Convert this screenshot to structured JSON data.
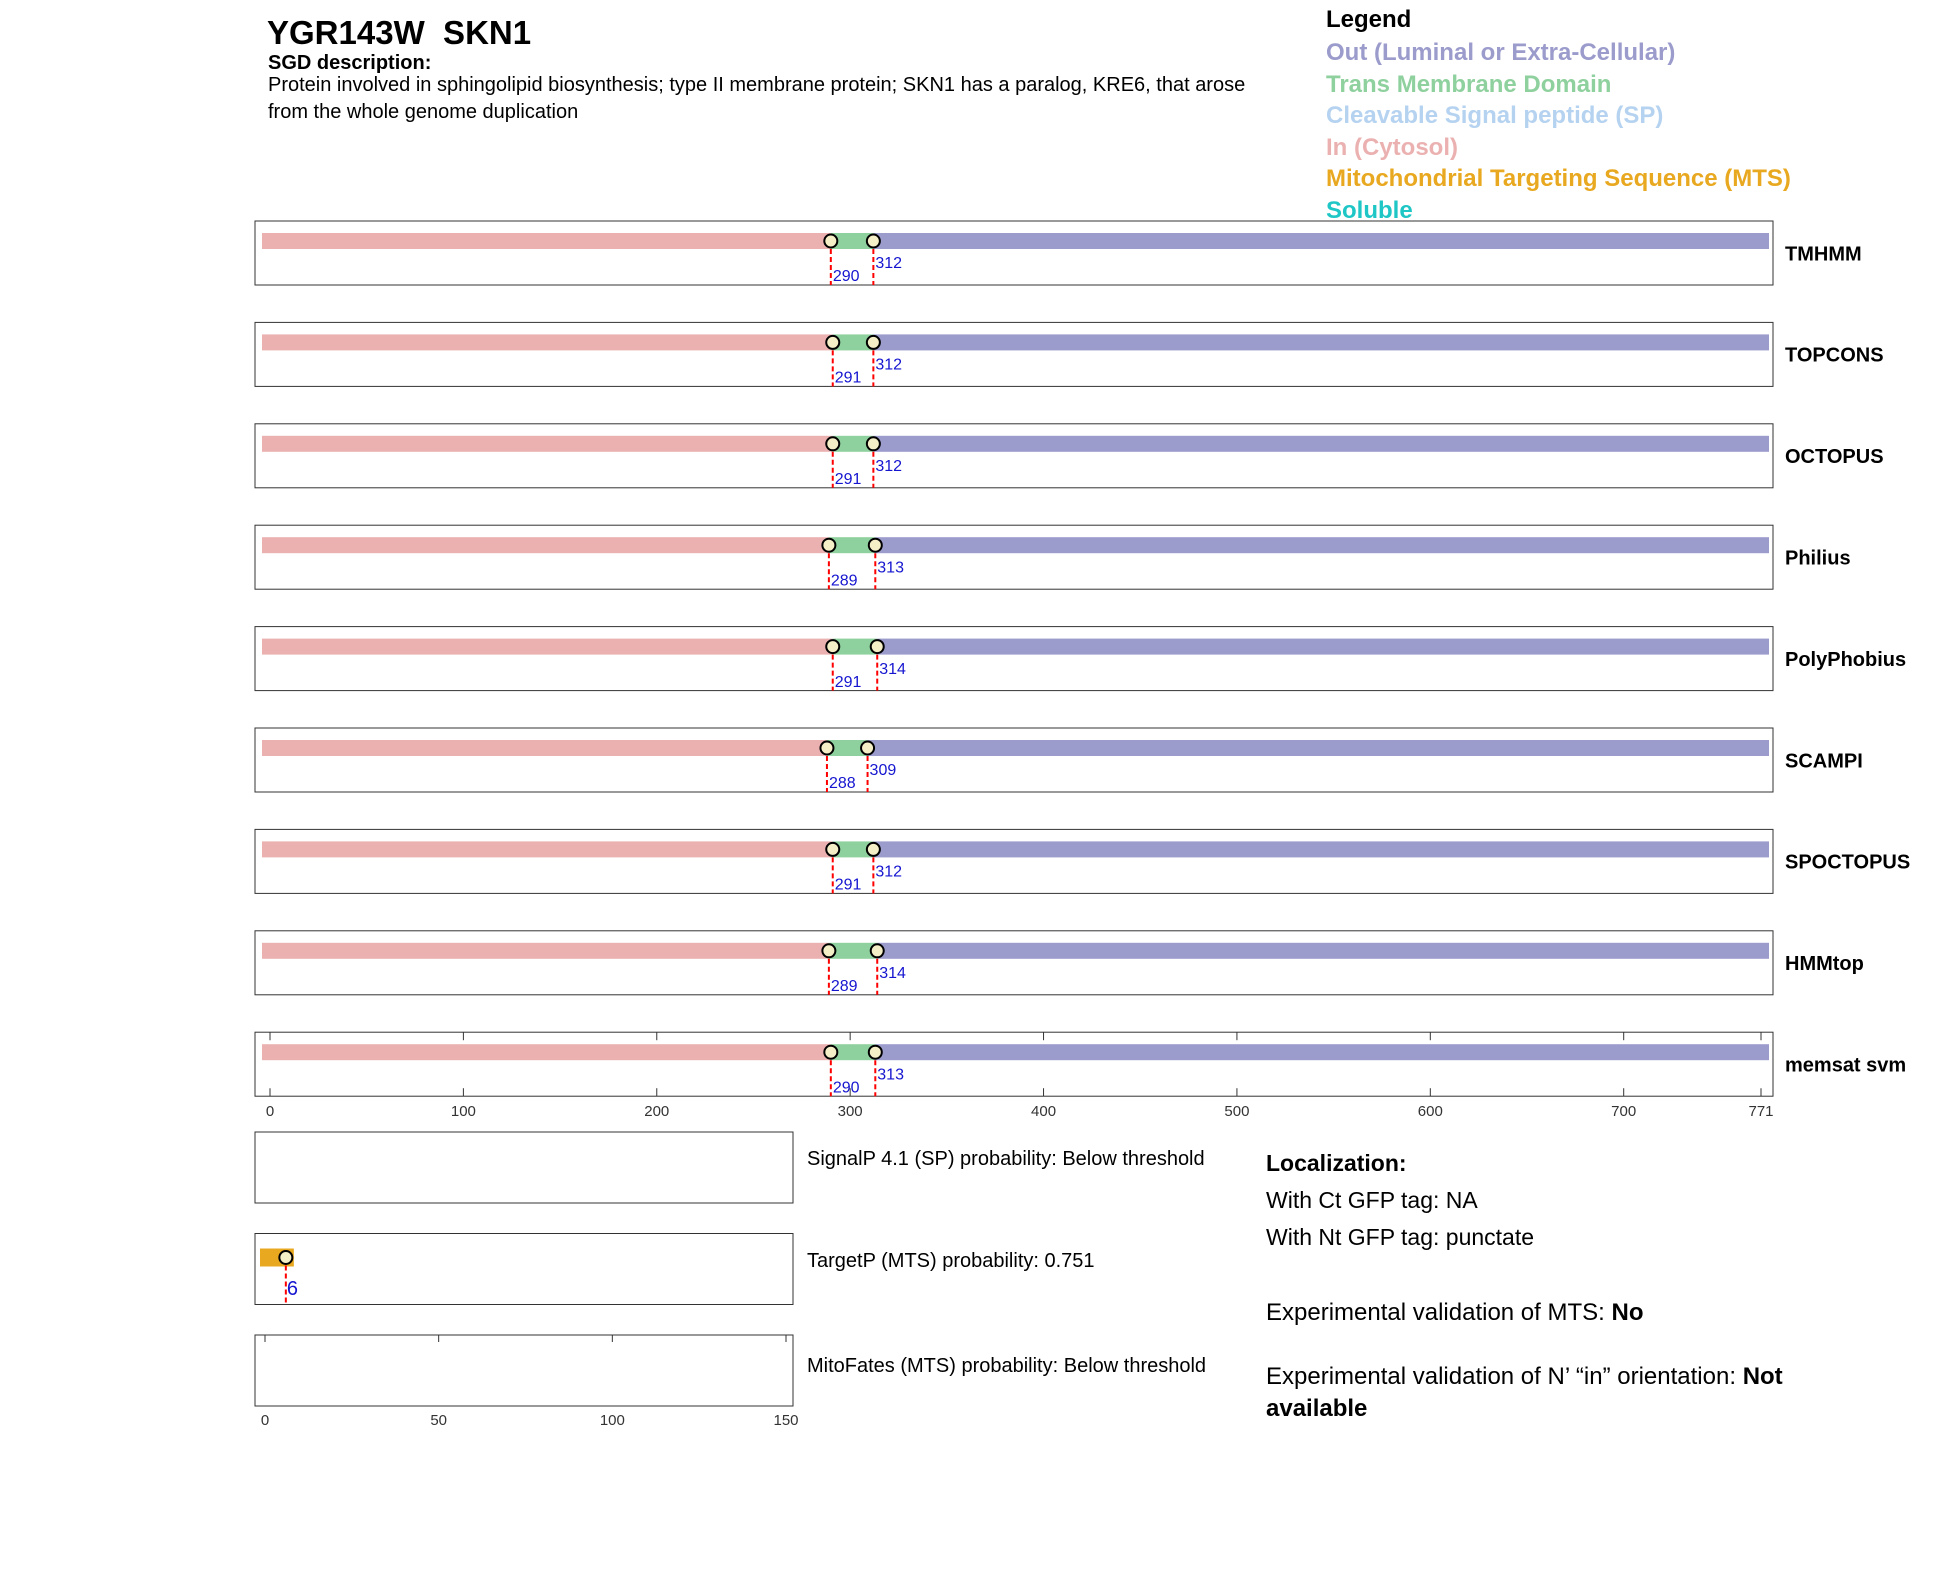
{
  "header": {
    "title": "YGR143W  SKN1",
    "description_label": "SGD description:",
    "description": "Protein involved in sphingolipid biosynthesis; type II membrane protein; SKN1 has a paralog, KRE6, that arose from the whole genome duplication"
  },
  "legend": {
    "title": "Legend",
    "items": [
      {
        "label": "Out (Luminal or Extra-Cellular)",
        "color": "#9b9bcc"
      },
      {
        "label": "Trans Membrane Domain",
        "color": "#8fd19e"
      },
      {
        "label": "Cleavable Signal peptide (SP)",
        "color": "#b5d3f0"
      },
      {
        "label": "In (Cytosol)",
        "color": "#ebb1b1"
      },
      {
        "label": "Mitochondrial Targeting Sequence (MTS)",
        "color": "#e8a820"
      },
      {
        "label": "Soluble",
        "color": "#1fc6c6"
      }
    ]
  },
  "topology": {
    "xlim": [
      0,
      771
    ],
    "xticks": [
      0,
      100,
      200,
      300,
      400,
      500,
      600,
      700,
      771
    ],
    "tracks": [
      {
        "name": "TMHMM",
        "tm_start": 290,
        "tm_end": 312
      },
      {
        "name": "TOPCONS",
        "tm_start": 291,
        "tm_end": 312
      },
      {
        "name": "OCTOPUS",
        "tm_start": 291,
        "tm_end": 312
      },
      {
        "name": "Philius",
        "tm_start": 289,
        "tm_end": 313
      },
      {
        "name": "PolyPhobius",
        "tm_start": 291,
        "tm_end": 314
      },
      {
        "name": "SCAMPI",
        "tm_start": 288,
        "tm_end": 309
      },
      {
        "name": "SPOCTOPUS",
        "tm_start": 291,
        "tm_end": 312
      },
      {
        "name": "HMMtop",
        "tm_start": 289,
        "tm_end": 314
      },
      {
        "name": "memsat svm",
        "tm_start": 290,
        "tm_end": 313
      }
    ]
  },
  "targeting": {
    "xlim": [
      0,
      150
    ],
    "xticks": [
      0,
      50,
      100,
      150
    ],
    "tracks": [
      {
        "label": "SignalP 4.1 (SP) probability: Below threshold"
      },
      {
        "label": "TargetP (MTS) probability: 0.751",
        "cleavage": 6
      },
      {
        "label": "MitoFates (MTS) probability: Below threshold"
      }
    ]
  },
  "localization": {
    "title": "Localization:",
    "ct_gfp": "With Ct GFP tag: NA",
    "nt_gfp": "With Nt GFP tag: punctate",
    "mts_validation": {
      "label": "Experimental validation of MTS:",
      "value": "No"
    },
    "orientation_validation": {
      "label": "Experimental validation of N’ “in” orientation:",
      "value": "Not available"
    }
  }
}
